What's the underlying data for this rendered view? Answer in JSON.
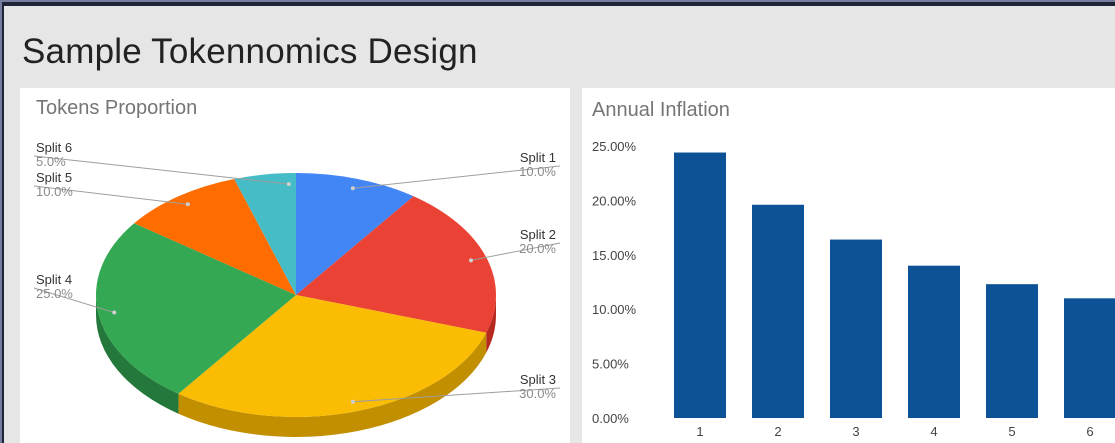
{
  "slide": {
    "title": "Sample Tokennomics Design"
  },
  "chart_data": [
    {
      "type": "pie",
      "title": "Tokens Proportion",
      "slices": [
        {
          "label": "Split 1",
          "value": 10.0,
          "display": "10.0%",
          "color": "#4285f4",
          "side_color": "#2f6cd6"
        },
        {
          "label": "Split 2",
          "value": 20.0,
          "display": "20.0%",
          "color": "#ea4335",
          "side_color": "#b5291f"
        },
        {
          "label": "Split 3",
          "value": 30.0,
          "display": "30.0%",
          "color": "#fbbc04",
          "side_color": "#c28f00"
        },
        {
          "label": "Split 4",
          "value": 25.0,
          "display": "25.0%",
          "color": "#34a853",
          "side_color": "#24783b"
        },
        {
          "label": "Split 5",
          "value": 10.0,
          "display": "10.0%",
          "color": "#ff6d01",
          "side_color": "#c24f00"
        },
        {
          "label": "Split 6",
          "value": 5.0,
          "display": "5.0%",
          "color": "#46bdc6",
          "side_color": "#2f8c93"
        }
      ]
    },
    {
      "type": "bar",
      "title": "Annual  Inflation",
      "categories": [
        "1",
        "2",
        "3",
        "4",
        "5",
        "6"
      ],
      "values": [
        24.4,
        19.6,
        16.4,
        14.0,
        12.3,
        11.0
      ],
      "ylim": [
        0,
        25
      ],
      "yticks": [
        "0.00%",
        "5.00%",
        "10.00%",
        "15.00%",
        "20.00%",
        "25.00%"
      ],
      "bar_color": "#0d5297"
    }
  ]
}
